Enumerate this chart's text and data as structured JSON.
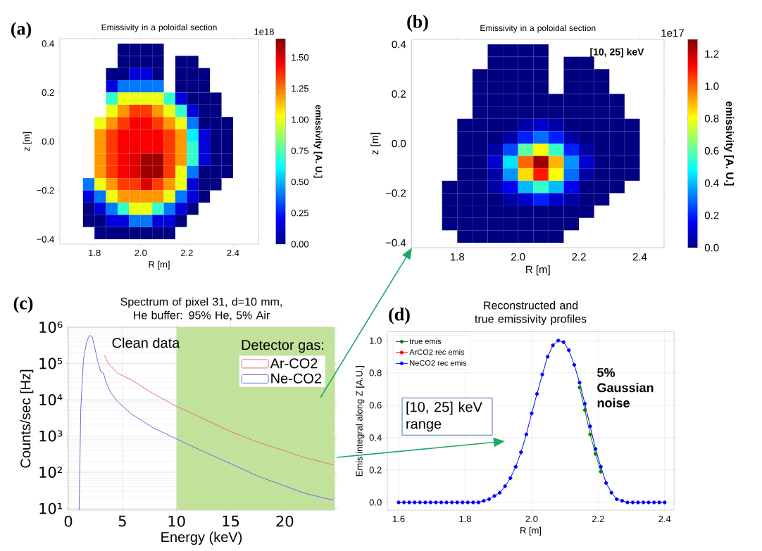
{
  "chart_data": [
    {
      "type": "heatmap",
      "title": "Emissivity in a poloidal section",
      "xlabel": "R [m]",
      "ylabel": "z [m]",
      "clabel": "emissivity [A. U.]",
      "annotations": [
        "(a)",
        "1e18"
      ],
      "xlim": [
        1.65,
        2.51
      ],
      "ylim": [
        -0.42,
        0.42
      ],
      "xticks": [
        {
          "value": 1.8,
          "label": "1.8"
        },
        {
          "value": 2.0,
          "label": "2.0"
        },
        {
          "value": 2.2,
          "label": "2.2"
        },
        {
          "value": 2.4,
          "label": "2.4"
        }
      ],
      "yticks": [
        {
          "value": -0.4,
          "label": "−0.4"
        },
        {
          "value": -0.2,
          "label": "−0.2"
        },
        {
          "value": 0.0,
          "label": "0.0"
        },
        {
          "value": 0.2,
          "label": "0.2"
        },
        {
          "value": 0.4,
          "label": "0.4"
        }
      ],
      "clim": [
        0,
        1.65
      ],
      "cticks": [
        {
          "value": 0,
          "label": "0.00"
        },
        {
          "value": 0.25,
          "label": "0.25"
        },
        {
          "value": 0.5,
          "label": "0.50"
        },
        {
          "value": 0.75,
          "label": "0.75"
        },
        {
          "value": 1.0,
          "label": "1.00"
        },
        {
          "value": 1.25,
          "label": "1.25"
        },
        {
          "value": 1.5,
          "label": "1.50"
        }
      ],
      "x": [
        1.775,
        1.825,
        1.875,
        1.925,
        1.975,
        2.025,
        2.075,
        2.125,
        2.175,
        2.225,
        2.275,
        2.325,
        2.375
      ],
      "y": [
        0.375,
        0.325,
        0.275,
        0.225,
        0.175,
        0.125,
        0.075,
        0.025,
        -0.025,
        -0.075,
        -0.125,
        -0.175,
        -0.225,
        -0.275,
        -0.325,
        -0.375
      ],
      "cells": [
        [
          null,
          null,
          null,
          0,
          0,
          0,
          0,
          null,
          null,
          null,
          null,
          null,
          null
        ],
        [
          null,
          null,
          null,
          0,
          0,
          0,
          0,
          null,
          0,
          0,
          null,
          null,
          null
        ],
        [
          null,
          null,
          0,
          0,
          0.15,
          0.15,
          0,
          null,
          0,
          0,
          0,
          null,
          null
        ],
        [
          null,
          null,
          0.15,
          0.4,
          0.4,
          0.4,
          0.4,
          null,
          0,
          0,
          0,
          null,
          null
        ],
        [
          null,
          null,
          0.7,
          1.0,
          1.0,
          1.0,
          1.0,
          0.7,
          0.15,
          0,
          0,
          0,
          null
        ],
        [
          null,
          null,
          1.0,
          1.2,
          1.35,
          1.35,
          1.2,
          1.0,
          0.7,
          0.15,
          0,
          0,
          null
        ],
        [
          null,
          1.0,
          1.2,
          1.35,
          1.45,
          1.45,
          1.35,
          1.2,
          1.0,
          0.4,
          0,
          0,
          0
        ],
        [
          null,
          1.2,
          1.35,
          1.45,
          1.45,
          1.45,
          1.45,
          1.35,
          1.2,
          0.6,
          0.15,
          0,
          0
        ],
        [
          null,
          1.2,
          1.35,
          1.45,
          1.45,
          1.45,
          1.45,
          1.35,
          1.2,
          0.7,
          0.15,
          0,
          0
        ],
        [
          null,
          1.2,
          1.35,
          1.45,
          1.5,
          1.6,
          1.6,
          1.35,
          1.2,
          0.7,
          0.15,
          0,
          0
        ],
        [
          null,
          1.2,
          1.35,
          1.45,
          1.5,
          1.6,
          1.6,
          1.35,
          1.0,
          0.4,
          0,
          0,
          0
        ],
        [
          0.4,
          1.0,
          1.2,
          1.35,
          1.35,
          1.5,
          1.35,
          1.2,
          1.0,
          0.15,
          0,
          0,
          null
        ],
        [
          0.15,
          0.4,
          1.0,
          1.2,
          1.2,
          1.2,
          1.2,
          1.0,
          0.4,
          0.15,
          0,
          null,
          null
        ],
        [
          0,
          0.15,
          0.4,
          0.7,
          1.0,
          1.0,
          0.7,
          0.4,
          0.15,
          0,
          null,
          null,
          null
        ],
        [
          0,
          0,
          0.15,
          0.15,
          0.4,
          0.4,
          0.15,
          0.15,
          0,
          null,
          null,
          null,
          null
        ],
        [
          null,
          0,
          0,
          0,
          0,
          0,
          0,
          0,
          null,
          null,
          null,
          null,
          null
        ]
      ]
    },
    {
      "type": "heatmap",
      "title": "Emissivity in a poloidal section",
      "xlabel": "R [m]",
      "ylabel": "z [m]",
      "clabel": "emissivity [A. U.]",
      "annotations": [
        "(b)",
        "1e17",
        "[10, 25] keV"
      ],
      "xlim": [
        1.65,
        2.48
      ],
      "ylim": [
        -0.42,
        0.42
      ],
      "xticks": [
        {
          "value": 1.8,
          "label": "1.8"
        },
        {
          "value": 2.0,
          "label": "2.0"
        },
        {
          "value": 2.2,
          "label": "2.2"
        },
        {
          "value": 2.4,
          "label": "2.4"
        }
      ],
      "yticks": [
        {
          "value": -0.4,
          "label": "−0.4"
        },
        {
          "value": -0.2,
          "label": "−0.2"
        },
        {
          "value": 0.0,
          "label": "0.0"
        },
        {
          "value": 0.2,
          "label": "0.2"
        },
        {
          "value": 0.4,
          "label": "0.4"
        }
      ],
      "clim": [
        0,
        1.29
      ],
      "cticks": [
        {
          "value": 0,
          "label": "0.0"
        },
        {
          "value": 0.2,
          "label": "0.2"
        },
        {
          "value": 0.4,
          "label": "0.4"
        },
        {
          "value": 0.6,
          "label": "0.6"
        },
        {
          "value": 0.8,
          "label": "0.8"
        },
        {
          "value": 1.0,
          "label": "1.0"
        },
        {
          "value": 1.2,
          "label": "1.2"
        }
      ],
      "x": [
        1.775,
        1.825,
        1.875,
        1.925,
        1.975,
        2.025,
        2.075,
        2.125,
        2.175,
        2.225,
        2.275,
        2.325,
        2.375
      ],
      "y": [
        0.375,
        0.325,
        0.275,
        0.225,
        0.175,
        0.125,
        0.075,
        0.025,
        -0.025,
        -0.075,
        -0.125,
        -0.175,
        -0.225,
        -0.275,
        -0.325,
        -0.375
      ],
      "cells": [
        [
          null,
          null,
          null,
          0,
          0,
          0,
          0,
          null,
          null,
          null,
          null,
          null,
          null
        ],
        [
          null,
          null,
          null,
          0,
          0,
          0,
          0,
          null,
          0,
          0,
          null,
          null,
          null
        ],
        [
          null,
          null,
          0,
          0,
          0,
          0,
          0,
          null,
          0,
          0,
          0,
          null,
          null
        ],
        [
          null,
          null,
          0,
          0,
          0,
          0,
          0,
          null,
          0,
          0,
          0,
          null,
          null
        ],
        [
          null,
          null,
          0,
          0,
          0,
          0,
          0,
          0,
          0,
          0,
          0,
          0,
          null
        ],
        [
          null,
          null,
          0,
          0,
          0,
          0,
          0,
          0,
          0,
          0,
          0,
          0,
          null
        ],
        [
          null,
          0,
          0,
          0,
          0,
          0.05,
          0.1,
          0.05,
          0,
          0,
          0,
          0,
          0
        ],
        [
          null,
          0,
          0,
          0,
          0.05,
          0.2,
          0.3,
          0.2,
          0.05,
          0,
          0,
          0,
          0
        ],
        [
          null,
          0,
          0,
          0.05,
          0.25,
          0.6,
          0.8,
          0.55,
          0.2,
          0.05,
          0,
          0,
          0
        ],
        [
          null,
          0,
          0,
          0.1,
          0.45,
          1.0,
          1.25,
          0.9,
          0.35,
          0.1,
          0,
          0,
          0
        ],
        [
          null,
          0,
          0,
          0.05,
          0.35,
          0.85,
          1.1,
          0.8,
          0.3,
          0.05,
          0,
          0,
          0
        ],
        [
          0,
          0,
          0,
          0.05,
          0.15,
          0.4,
          0.55,
          0.4,
          0.15,
          0,
          0,
          0,
          null
        ],
        [
          0,
          0,
          0,
          0,
          0.05,
          0.1,
          0.2,
          0.1,
          0.05,
          0,
          0,
          null,
          null
        ],
        [
          0,
          0,
          0,
          0,
          0,
          0,
          0,
          0,
          0,
          0,
          null,
          null,
          null
        ],
        [
          0,
          0,
          0,
          0,
          0,
          0,
          0,
          0,
          0,
          null,
          null,
          null,
          null
        ],
        [
          null,
          0,
          0,
          0,
          0,
          0,
          0,
          0,
          null,
          null,
          null,
          null,
          null
        ]
      ]
    },
    {
      "type": "line",
      "title": "Spectrum of pixel 31, d=10 mm, He buffer: 95% He, 5% Air",
      "xlabel": "Energy (keV)",
      "ylabel": "Counts/sec [Hz]",
      "annotations": [
        "(c)",
        "Clean data"
      ],
      "legend_title": "Detector gas:",
      "legend": "top right",
      "grid": true,
      "log": true,
      "xlim": [
        0,
        24.6
      ],
      "ylim": [
        9,
        1000000
      ],
      "xticks": [
        0,
        5,
        10,
        15,
        20
      ],
      "yticks": [
        {
          "value": 10,
          "label": "10¹"
        },
        {
          "value": 100,
          "label": "10²"
        },
        {
          "value": 1000,
          "label": "10³"
        },
        {
          "value": 10000,
          "label": "10⁴"
        },
        {
          "value": 100000,
          "label": "10⁵"
        },
        {
          "value": 1000000,
          "label": "10⁶"
        }
      ],
      "bands": [
        {
          "axis": "x",
          "from": 10,
          "to": 24.6,
          "color": "#c2e29c"
        }
      ],
      "series": [
        {
          "name": "Ar-CO2",
          "color": "#e5706c",
          "x": [
            3.35,
            3.7,
            4.55,
            5.85,
            7.8,
            10,
            12.1,
            15.05,
            17.6,
            20,
            21.9,
            24.5
          ],
          "values": [
            166000,
            98000,
            54000,
            35000,
            15000,
            6600,
            3400,
            1300,
            660,
            390,
            250,
            160
          ]
        },
        {
          "name": "Ne-CO2",
          "color": "#7467dd",
          "x": [
            1.0,
            1.15,
            1.4,
            1.7,
            1.95,
            2.2,
            2.4,
            2.7,
            3.0,
            3.25,
            3.5,
            3.9,
            4.55,
            5.85,
            7.8,
            10,
            12.1,
            15.05,
            17.6,
            20,
            21.9,
            24.5
          ],
          "values": [
            9,
            5400,
            130000,
            400000,
            590000,
            550000,
            320000,
            120000,
            59000,
            54000,
            30000,
            16000,
            8900,
            4000,
            1700,
            830,
            420,
            170,
            76,
            42,
            26,
            17
          ]
        }
      ]
    },
    {
      "type": "line",
      "title": "Reconstructed and true emissivity profiles",
      "xlabel": "R [m]",
      "ylabel": "Emis integral along Z [A.U.]",
      "annotations": [
        "(d)",
        "[10, 25] keV range",
        "5% Gaussian noise"
      ],
      "legend": "top left",
      "grid": true,
      "marker": "circle",
      "xlim": [
        1.566,
        2.428
      ],
      "ylim": [
        -0.048,
        1.054
      ],
      "xticks": [
        {
          "value": 1.6,
          "label": "1.6"
        },
        {
          "value": 1.8,
          "label": "1.8"
        },
        {
          "value": 2.0,
          "label": "2.0"
        },
        {
          "value": 2.2,
          "label": "2.2"
        },
        {
          "value": 2.4,
          "label": "2.4"
        }
      ],
      "yticks": [
        {
          "value": 0.0,
          "label": "0.0"
        },
        {
          "value": 0.2,
          "label": "0.2"
        },
        {
          "value": 0.4,
          "label": "0.4"
        },
        {
          "value": 0.6,
          "label": "0.6"
        },
        {
          "value": 0.8,
          "label": "0.8"
        },
        {
          "value": 1.0,
          "label": "1.0"
        }
      ],
      "x": [
        1.6,
        1.616,
        1.632,
        1.648,
        1.664,
        1.68,
        1.696,
        1.712,
        1.728,
        1.744,
        1.76,
        1.776,
        1.792,
        1.808,
        1.824,
        1.84,
        1.856,
        1.872,
        1.888,
        1.904,
        1.92,
        1.936,
        1.952,
        1.968,
        1.984,
        2.0,
        2.016,
        2.032,
        2.048,
        2.064,
        2.08,
        2.096,
        2.112,
        2.128,
        2.144,
        2.16,
        2.176,
        2.192,
        2.208,
        2.224,
        2.24,
        2.256,
        2.272,
        2.288,
        2.304,
        2.32,
        2.336,
        2.352,
        2.368,
        2.384,
        2.4
      ],
      "series": [
        {
          "name": "true emis",
          "color": "#008000",
          "values": [
            null,
            null,
            null,
            null,
            null,
            null,
            null,
            null,
            null,
            null,
            null,
            null,
            null,
            null,
            null,
            null,
            null,
            null,
            null,
            null,
            null,
            null,
            null,
            null,
            null,
            null,
            null,
            null,
            null,
            null,
            null,
            null,
            null,
            null,
            0.71,
            0.57,
            0.42,
            0.3,
            0.19,
            null,
            null,
            null,
            null,
            null,
            null,
            null,
            null,
            null,
            null,
            null,
            null
          ]
        },
        {
          "name": "ArCO2 rec emis",
          "color": "#ff0000",
          "values": [
            null,
            null,
            null,
            null,
            null,
            null,
            null,
            null,
            null,
            null,
            null,
            null,
            null,
            null,
            null,
            null,
            null,
            null,
            null,
            null,
            null,
            null,
            null,
            null,
            null,
            null,
            null,
            null,
            null,
            null,
            null,
            null,
            null,
            null,
            null,
            null,
            null,
            null,
            null,
            null,
            null,
            null,
            null,
            null,
            null,
            null,
            null,
            null,
            null,
            null,
            null
          ]
        },
        {
          "name": "NeCO2 rec emis",
          "color": "#0000ff",
          "values": [
            0,
            0,
            0,
            0,
            0,
            0,
            0,
            0,
            0,
            0,
            0,
            0,
            0,
            0,
            0,
            0,
            0.01,
            0.02,
            0.04,
            0.06,
            0.1,
            0.15,
            0.22,
            0.31,
            0.42,
            0.55,
            0.67,
            0.79,
            0.9,
            0.97,
            1.0,
            0.99,
            0.94,
            0.85,
            0.74,
            0.61,
            0.47,
            0.33,
            0.22,
            0.12,
            0.06,
            0.02,
            0.01,
            0,
            0,
            0,
            0,
            0,
            0,
            0,
            0
          ]
        }
      ]
    }
  ]
}
